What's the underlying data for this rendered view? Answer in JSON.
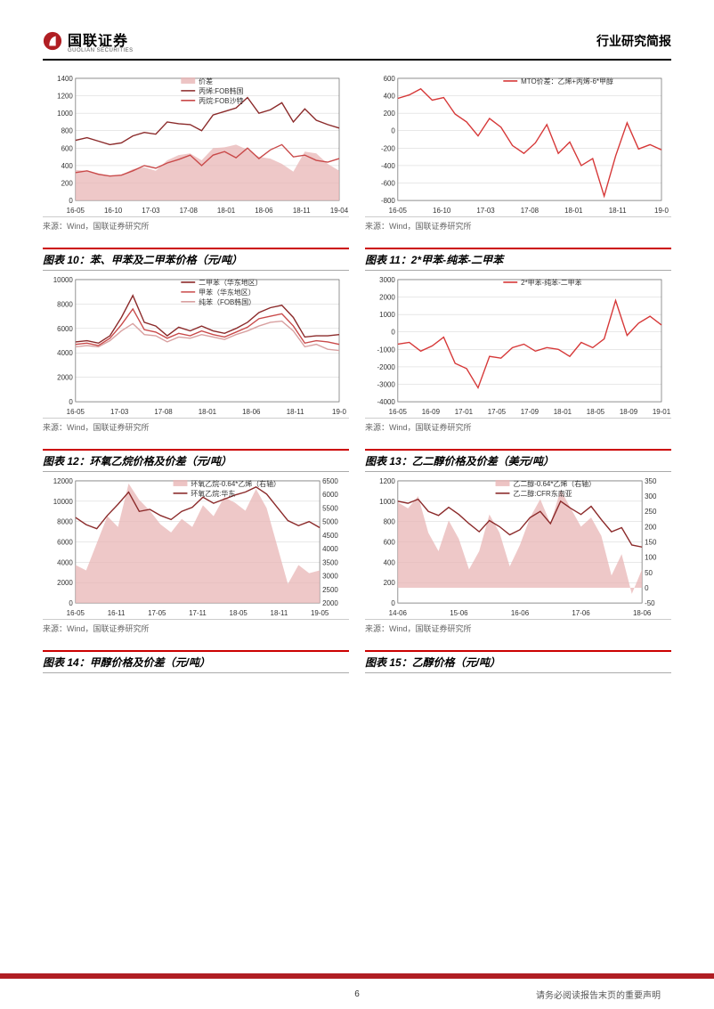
{
  "header": {
    "company_cn": "国联证券",
    "company_en": "GUOLIAN SECURITIES",
    "doc_type": "行业研究简报",
    "logo_color": "#b01e23"
  },
  "footer": {
    "page_num": "6",
    "disclaimer": "请务必阅读报告末页的重要声明",
    "bar_color": "#b01e23"
  },
  "source_text": "来源：Wind，国联证券研究所",
  "colors": {
    "dark_red": "#8b2a2a",
    "bright_red": "#d63838",
    "pink_fill": "#e8b5b5",
    "pink_line": "#d8a0a0",
    "grid": "#d0d0d0",
    "axis": "#333333"
  },
  "charts": [
    {
      "id": "c8",
      "title": "",
      "legend": [
        "价差",
        "丙烯:FOB韩国",
        "丙烷:FOB沙特"
      ],
      "legend_colors": [
        "#e8b5b5",
        "#8b2a2a",
        "#c94a4a"
      ],
      "legend_styles": [
        "area",
        "line",
        "line"
      ],
      "x_labels": [
        "16-05",
        "16-10",
        "17-03",
        "17-08",
        "18-01",
        "18-06",
        "18-11",
        "19-04"
      ],
      "y_labels": [
        "0",
        "200",
        "400",
        "600",
        "800",
        "1000",
        "1200",
        "1400"
      ],
      "ylim": [
        0,
        1400
      ],
      "series": [
        {
          "type": "area",
          "color": "#e8b5b5",
          "data": [
            350,
            340,
            310,
            280,
            290,
            360,
            380,
            340,
            460,
            520,
            540,
            460,
            600,
            610,
            640,
            580,
            500,
            480,
            420,
            330,
            560,
            540,
            420,
            340
          ]
        },
        {
          "type": "line",
          "color": "#8b2a2a",
          "data": [
            690,
            720,
            680,
            640,
            660,
            740,
            780,
            760,
            900,
            880,
            870,
            800,
            980,
            1020,
            1060,
            1180,
            1000,
            1040,
            1120,
            900,
            1050,
            920,
            870,
            830
          ]
        },
        {
          "type": "line",
          "color": "#c94a4a",
          "data": [
            320,
            340,
            300,
            280,
            290,
            340,
            400,
            370,
            430,
            470,
            520,
            400,
            520,
            560,
            490,
            600,
            480,
            580,
            640,
            500,
            520,
            460,
            440,
            480
          ]
        }
      ]
    },
    {
      "id": "c9",
      "title": "",
      "legend": [
        "MTO价差：乙烯+丙烯-6*甲醇"
      ],
      "legend_colors": [
        "#d63838"
      ],
      "legend_styles": [
        "line"
      ],
      "x_labels": [
        "16-05",
        "16-10",
        "17-03",
        "17-08",
        "18-01",
        "18-11",
        "19-0"
      ],
      "y_labels": [
        "-800",
        "-600",
        "-400",
        "-200",
        "0",
        "200",
        "400",
        "600"
      ],
      "ylim": [
        -800,
        600
      ],
      "series": [
        {
          "type": "line",
          "color": "#d63838",
          "data": [
            370,
            410,
            480,
            350,
            380,
            190,
            100,
            -60,
            140,
            40,
            -170,
            -260,
            -140,
            70,
            -260,
            -130,
            -400,
            -320,
            -750,
            -290,
            90,
            -210,
            -160,
            -220
          ]
        }
      ]
    },
    {
      "id": "c10",
      "title": "图表 10：苯、甲苯及二甲苯价格（元/吨）",
      "legend": [
        "二甲苯（华东地区）",
        "甲苯（华东地区）",
        "纯苯（FOB韩国）"
      ],
      "legend_colors": [
        "#8b2a2a",
        "#c94a4a",
        "#d8a0a0"
      ],
      "legend_styles": [
        "line",
        "line",
        "line"
      ],
      "x_labels": [
        "16-05",
        "17-03",
        "17-08",
        "18-01",
        "18-06",
        "18-11",
        "19-0"
      ],
      "y_labels": [
        "0",
        "2000",
        "4000",
        "6000",
        "8000",
        "10000"
      ],
      "ylim": [
        0,
        10000
      ],
      "series": [
        {
          "type": "line",
          "color": "#8b2a2a",
          "data": [
            4900,
            5000,
            4800,
            5400,
            6900,
            8700,
            6500,
            6200,
            5400,
            6100,
            5800,
            6200,
            5800,
            5600,
            6000,
            6500,
            7300,
            7700,
            7900,
            6900,
            5300,
            5400,
            5400,
            5500
          ]
        },
        {
          "type": "line",
          "color": "#c94a4a",
          "data": [
            4700,
            4800,
            4600,
            5200,
            6300,
            7600,
            5900,
            5700,
            5200,
            5600,
            5400,
            5800,
            5500,
            5300,
            5700,
            6100,
            6800,
            7000,
            7200,
            6200,
            4800,
            5000,
            4900,
            4700
          ]
        },
        {
          "type": "line",
          "color": "#d8a0a0",
          "data": [
            4500,
            4600,
            4500,
            5000,
            5800,
            6400,
            5500,
            5400,
            4900,
            5300,
            5200,
            5500,
            5300,
            5100,
            5500,
            5800,
            6200,
            6500,
            6600,
            5800,
            4500,
            4700,
            4300,
            4200
          ]
        }
      ]
    },
    {
      "id": "c11",
      "title": "图表 11：2*甲苯-纯苯-二甲苯",
      "legend": [
        "2*甲苯-纯苯-二甲苯"
      ],
      "legend_colors": [
        "#d63838"
      ],
      "legend_styles": [
        "line"
      ],
      "x_labels": [
        "16-05",
        "16-09",
        "17-01",
        "17-05",
        "17-09",
        "18-01",
        "18-05",
        "18-09",
        "19-01"
      ],
      "y_labels": [
        "-4000",
        "-3000",
        "-2000",
        "-1000",
        "0",
        "1000",
        "2000",
        "3000"
      ],
      "ylim": [
        -4000,
        3000
      ],
      "series": [
        {
          "type": "line",
          "color": "#d63838",
          "data": [
            -700,
            -600,
            -1100,
            -800,
            -300,
            -1800,
            -2100,
            -3200,
            -1400,
            -1500,
            -900,
            -700,
            -1100,
            -900,
            -1000,
            -1400,
            -600,
            -900,
            -400,
            1800,
            -200,
            500,
            900,
            400
          ]
        }
      ]
    },
    {
      "id": "c12",
      "title": "图表 12：环氧乙烷价格及价差（元/吨）",
      "legend": [
        "环氧乙烷-0.64*乙烯（右轴）",
        "环氧乙烷:华东"
      ],
      "legend_colors": [
        "#e8b5b5",
        "#8b2a2a"
      ],
      "legend_styles": [
        "area",
        "line"
      ],
      "x_labels": [
        "16-05",
        "16-11",
        "17-05",
        "17-11",
        "18-05",
        "18-11",
        "19-05"
      ],
      "y_labels": [
        "0",
        "2000",
        "4000",
        "6000",
        "8000",
        "10000",
        "12000"
      ],
      "y2_labels": [
        "2000",
        "2500",
        "3000",
        "3500",
        "4000",
        "4500",
        "5000",
        "5500",
        "6000",
        "6500"
      ],
      "ylim": [
        0,
        12000
      ],
      "y2lim": [
        2000,
        6500
      ],
      "series": [
        {
          "type": "area",
          "color": "#e8b5b5",
          "axis": "right",
          "data": [
            3400,
            3200,
            4200,
            5200,
            4800,
            6400,
            5800,
            5400,
            4900,
            4600,
            5100,
            4800,
            5600,
            5200,
            5900,
            5700,
            5400,
            6200,
            5500,
            4100,
            2700,
            3400,
            3100,
            3200
          ]
        },
        {
          "type": "line",
          "color": "#8b2a2a",
          "data": [
            8400,
            7700,
            7300,
            8600,
            9700,
            10900,
            9000,
            9200,
            8600,
            8200,
            9000,
            9400,
            10400,
            9800,
            10200,
            10600,
            10900,
            11400,
            10700,
            9400,
            8100,
            7600,
            8000,
            7400
          ]
        }
      ]
    },
    {
      "id": "c13",
      "title": "图表 13：乙二醇价格及价差（美元/吨）",
      "legend": [
        "乙二醇-0.64*乙烯（右轴）",
        "乙二醇:CFR东南亚"
      ],
      "legend_colors": [
        "#e8b5b5",
        "#8b2a2a"
      ],
      "legend_styles": [
        "area",
        "line"
      ],
      "x_labels": [
        "14-06",
        "15-06",
        "16-06",
        "17-06",
        "18-06"
      ],
      "y_labels": [
        "0",
        "200",
        "400",
        "600",
        "800",
        "1000",
        "1200"
      ],
      "y2_labels": [
        "-50",
        "0",
        "50",
        "100",
        "150",
        "200",
        "250",
        "300",
        "350"
      ],
      "ylim": [
        0,
        1200
      ],
      "y2lim": [
        -50,
        350
      ],
      "series": [
        {
          "type": "area",
          "color": "#e8b5b5",
          "axis": "right",
          "data": [
            280,
            260,
            300,
            180,
            120,
            220,
            160,
            60,
            120,
            240,
            180,
            70,
            140,
            230,
            290,
            210,
            320,
            260,
            200,
            230,
            170,
            40,
            110,
            -20,
            60
          ]
        },
        {
          "type": "line",
          "color": "#8b2a2a",
          "data": [
            1000,
            980,
            1020,
            900,
            860,
            940,
            870,
            780,
            700,
            810,
            750,
            670,
            720,
            840,
            900,
            780,
            1000,
            930,
            870,
            950,
            820,
            700,
            740,
            570,
            550
          ]
        }
      ]
    },
    {
      "id": "c14",
      "title": "图表 14：甲醇价格及价差（元/吨）",
      "empty": true
    },
    {
      "id": "c15",
      "title": "图表 15：乙醇价格（元/吨）",
      "empty": true
    }
  ]
}
